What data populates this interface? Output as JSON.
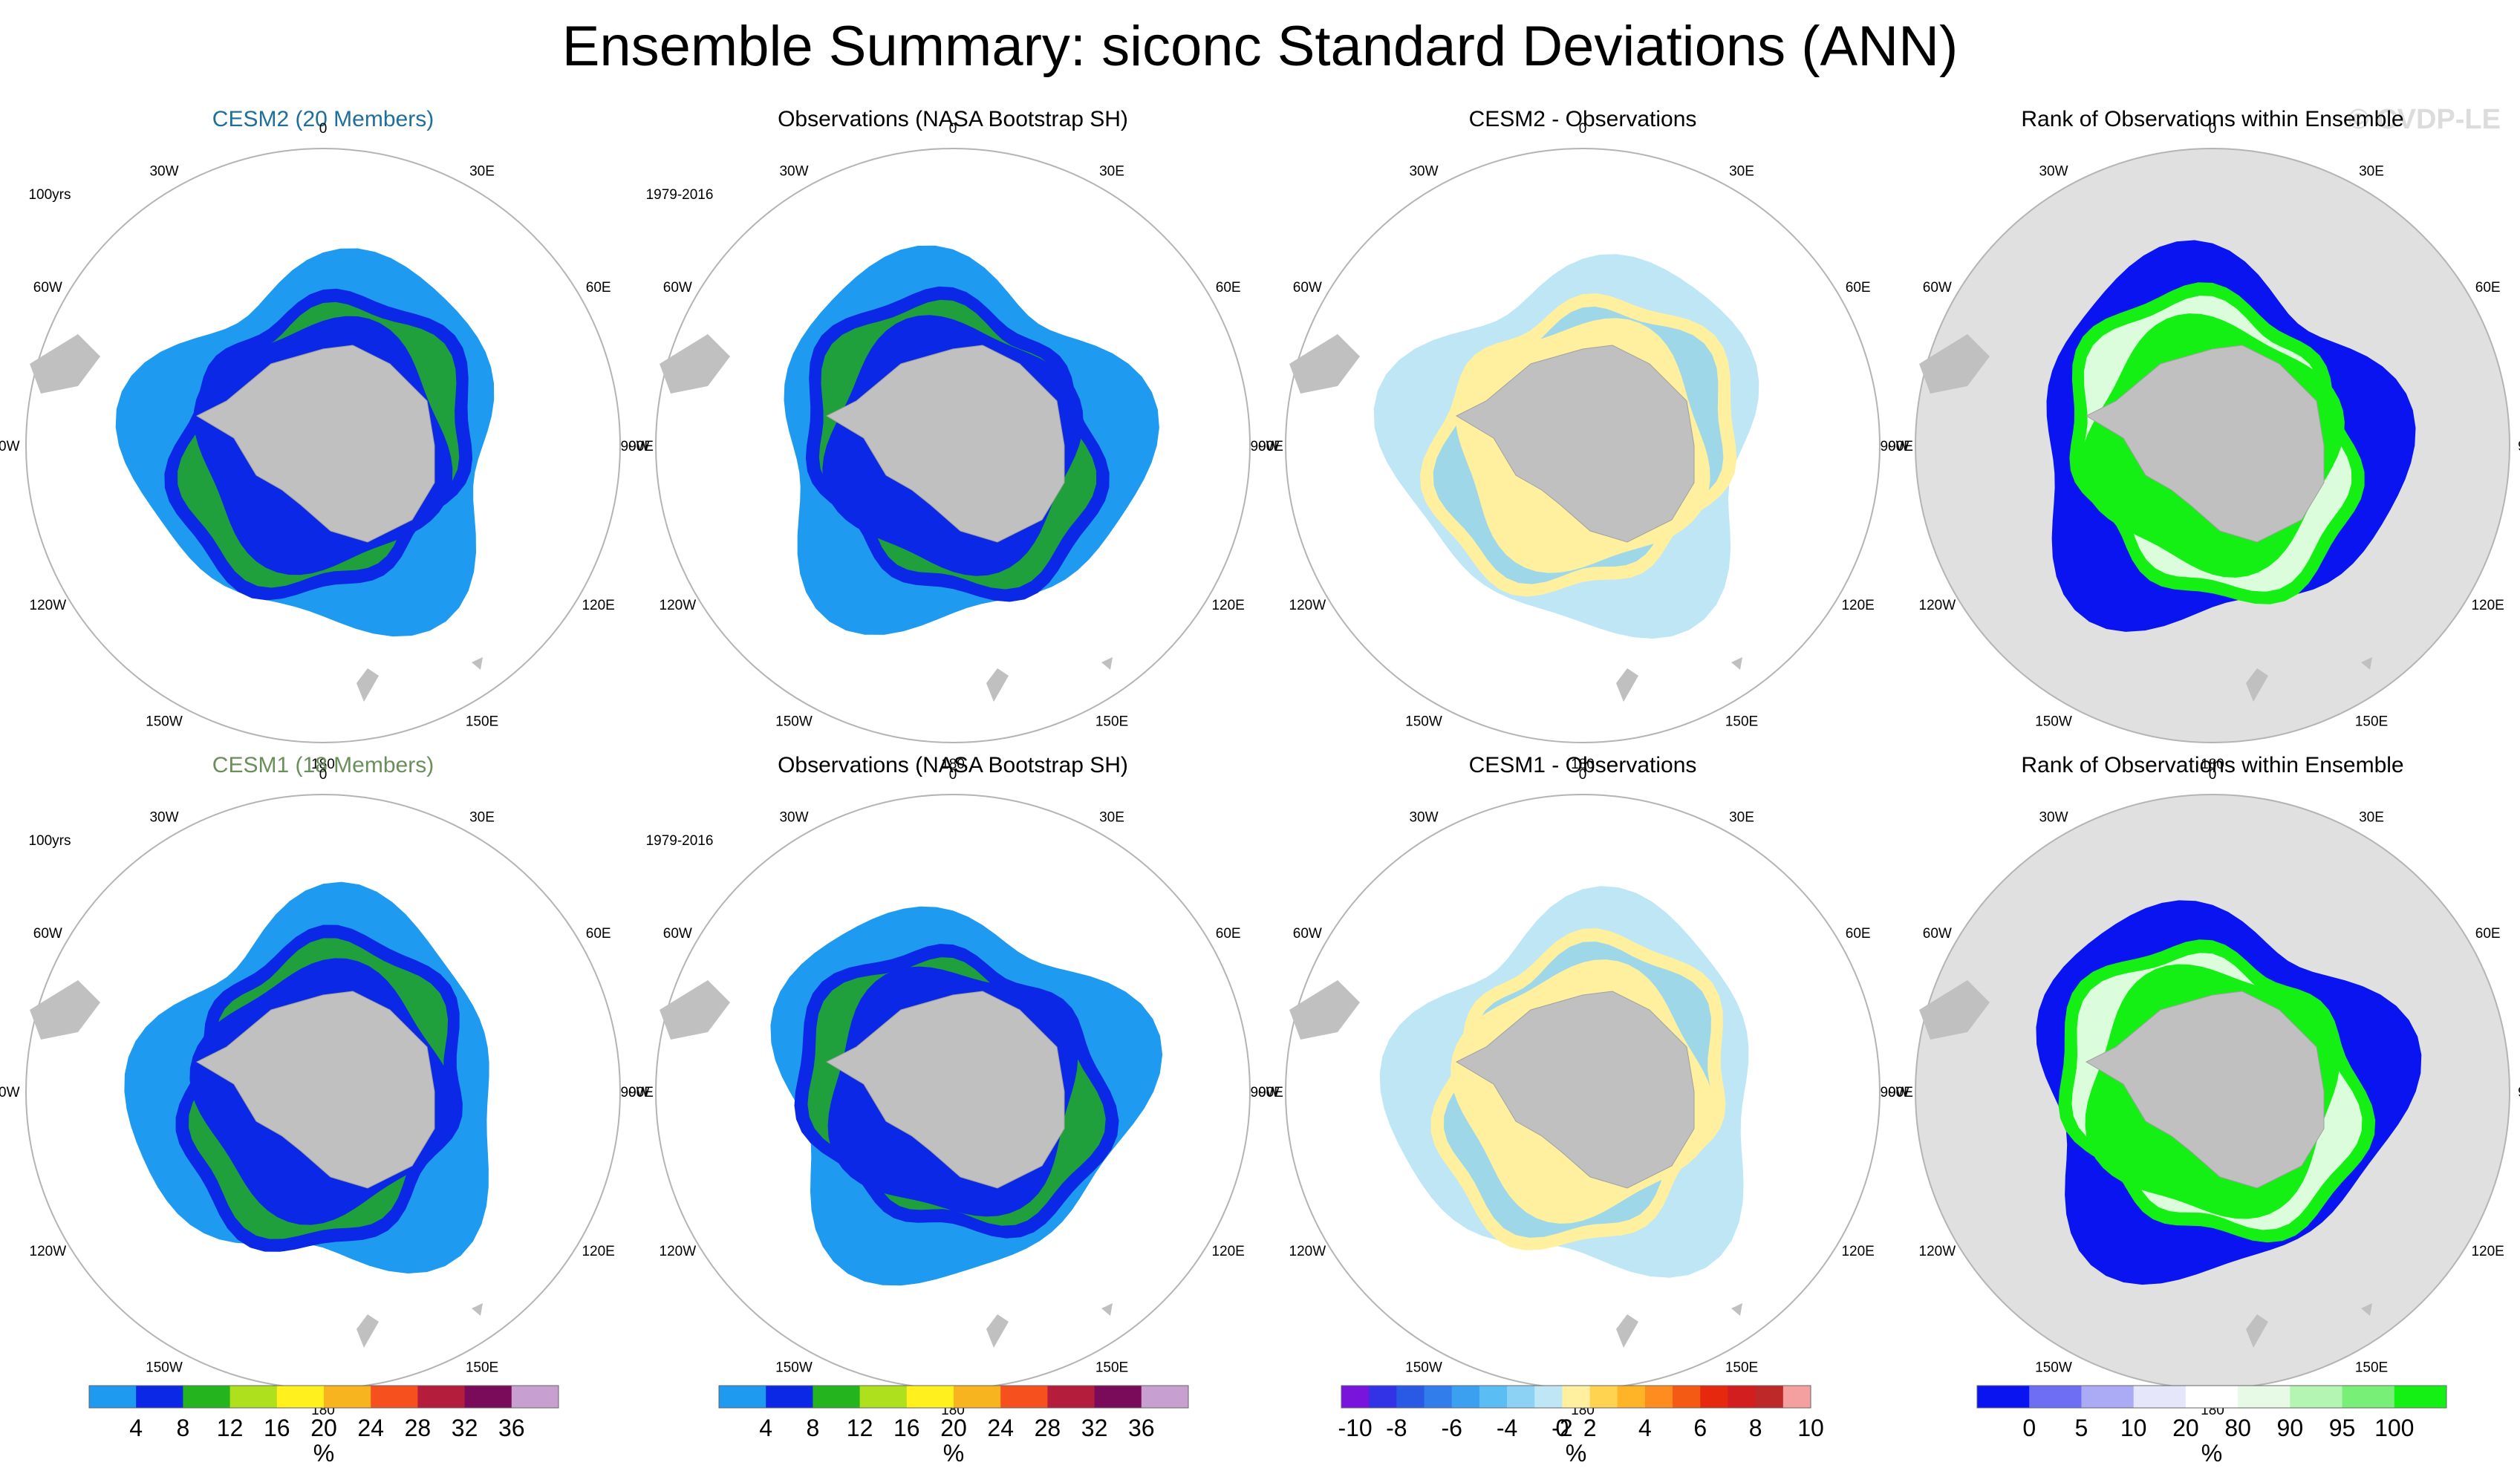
{
  "title": "Ensemble Summary: siconc Standard Deviations (ANN)",
  "watermark": "© CVDP-LE",
  "panels": {
    "r0c0": {
      "title": "CESM2 (20 Members)",
      "corner": "100yrs",
      "title_color": "#1f6e9c"
    },
    "r0c1": {
      "title": "Observations (NASA Bootstrap SH)",
      "corner": "1979-2016"
    },
    "r0c2": {
      "title": "CESM2 - Observations",
      "corner": ""
    },
    "r0c3": {
      "title": "Rank of Observations within Ensemble",
      "corner": ""
    },
    "r1c0": {
      "title": "CESM1 (18 Members)",
      "corner": "100yrs",
      "title_color": "#6a8f5c"
    },
    "r1c1": {
      "title": "Observations (NASA Bootstrap SH)",
      "corner": "1979-2016"
    },
    "r1c2": {
      "title": "CESM1 - Observations",
      "corner": ""
    },
    "r1c3": {
      "title": "Rank of Observations within Ensemble",
      "corner": ""
    }
  },
  "longitude_labels": [
    "0",
    "30E",
    "60E",
    "90E",
    "120E",
    "150E",
    "180",
    "150W",
    "120W",
    "90W",
    "60W",
    "30W"
  ],
  "colorbars": {
    "stddev": {
      "colors": [
        "#1e9bf0",
        "#0a28e6",
        "#24b41e",
        "#aee01e",
        "#fff01e",
        "#f7b41e",
        "#f5501e",
        "#b41e3c",
        "#7a0a5a",
        "#c8a0d0"
      ],
      "labels": [
        "4",
        "8",
        "12",
        "16",
        "20",
        "24",
        "28",
        "32",
        "36"
      ],
      "unit": "%"
    },
    "difference": {
      "colors": [
        "#7814dc",
        "#3232e6",
        "#285ae6",
        "#327dec",
        "#3ca0f0",
        "#5abef5",
        "#8cd2f5",
        "#bee6f5",
        "#fff0a0",
        "#ffd250",
        "#ffb428",
        "#ff8c1e",
        "#f55a14",
        "#e6280f",
        "#d21e1e",
        "#be2828",
        "#f5a0a0"
      ],
      "labels": [
        "-10",
        "-8",
        "-6",
        "-4",
        "-2",
        "0",
        "2",
        "4",
        "6",
        "8",
        "10"
      ],
      "unit": "%"
    },
    "rank": {
      "colors": [
        "#0a14f0",
        "#6e6ef5",
        "#aaaaf5",
        "#e6e6fa",
        "#ffffff",
        "#e6fae6",
        "#b4f5b4",
        "#78f078",
        "#14f014"
      ],
      "labels": [
        "0",
        "5",
        "10",
        "20",
        "80",
        "90",
        "95",
        "100"
      ],
      "unit": "%"
    }
  },
  "chart_data": {
    "type": "heatmap",
    "title": "Ensemble Summary: siconc Standard Deviations (ANN)",
    "projection": "south polar stereographic",
    "longitude_ticks": [
      "0",
      "30E",
      "60E",
      "90E",
      "120E",
      "150E",
      "180",
      "150W",
      "120W",
      "90W",
      "60W",
      "30W"
    ],
    "rows": [
      {
        "model": "CESM2",
        "members": 20,
        "model_period": "100yrs",
        "obs_period": "1979-2016"
      },
      {
        "model": "CESM1",
        "members": 18,
        "model_period": "100yrs",
        "obs_period": "1979-2016"
      }
    ],
    "columns": [
      "model std dev",
      "observed std dev",
      "model - observations",
      "rank of observations within ensemble"
    ],
    "colorbar_ranges": {
      "std_dev_percent": [
        4,
        36
      ],
      "difference_percent": [
        -10,
        10
      ],
      "rank_percent": [
        0,
        100
      ]
    },
    "legend": "bottom"
  }
}
